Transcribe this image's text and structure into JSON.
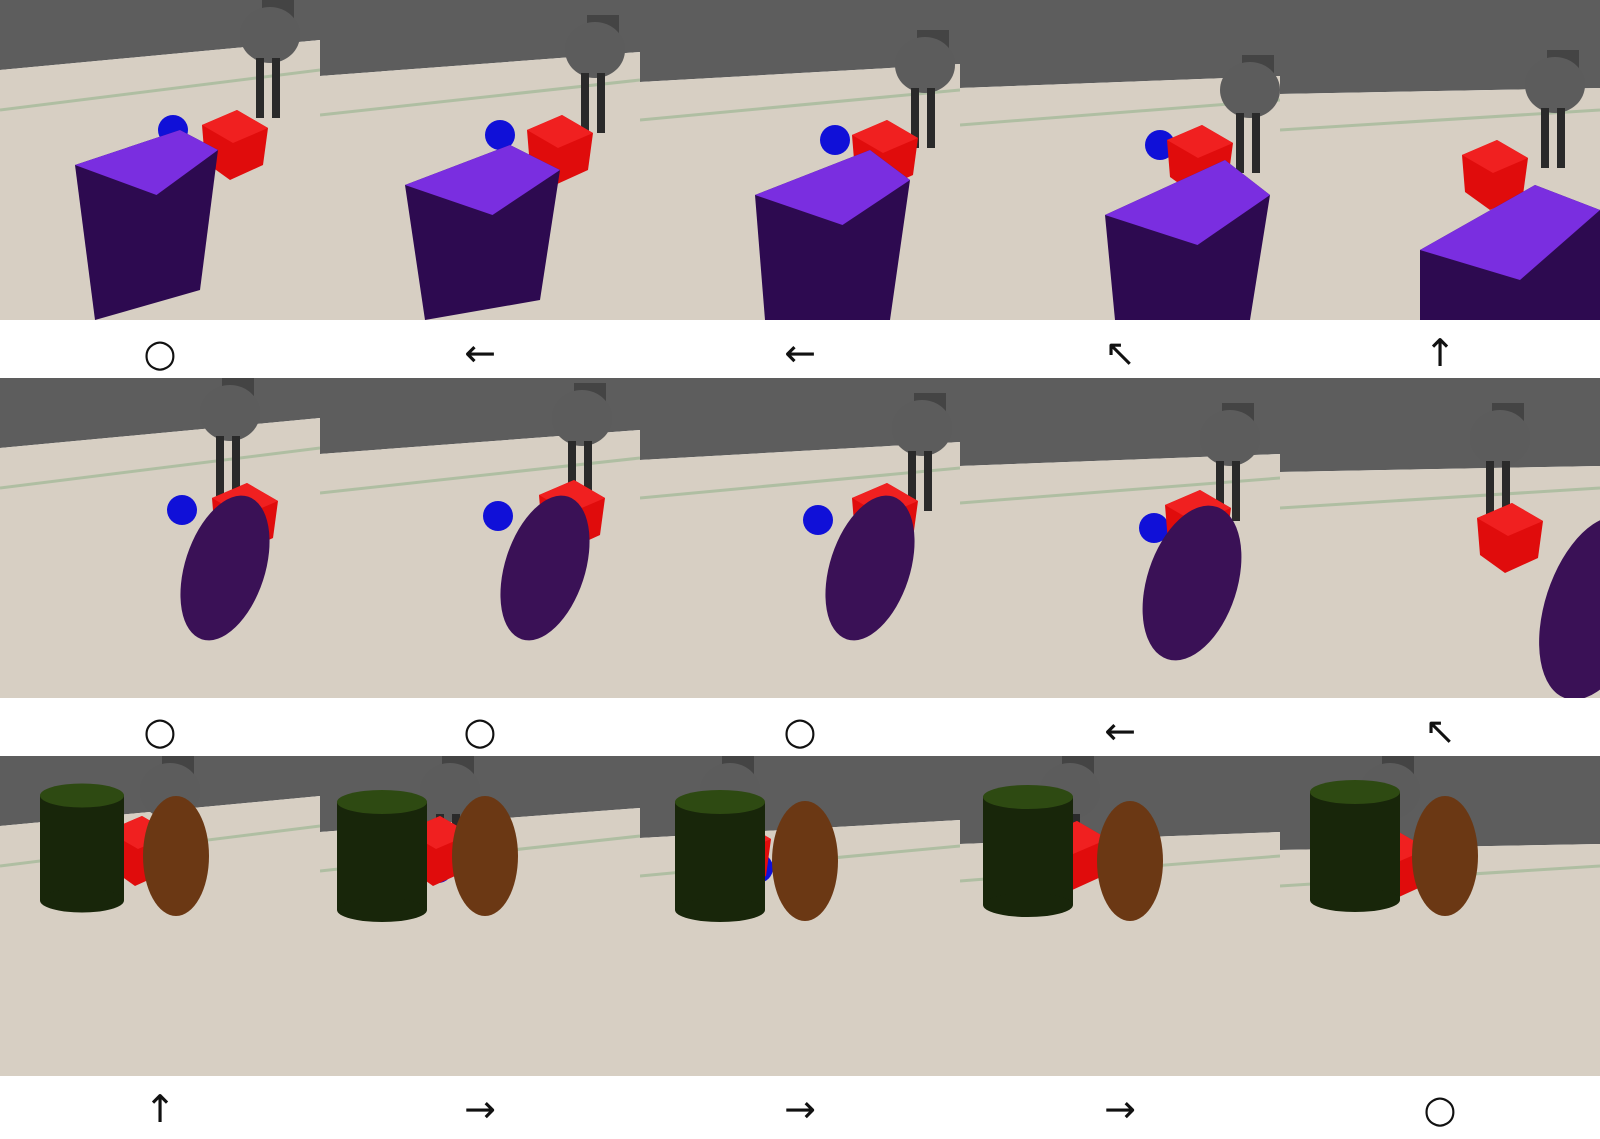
{
  "colors": {
    "floor": "#d7cfc3",
    "wall": "#5d5d5d",
    "robot": "#5c5c5c",
    "red_cube": "#e00c0c",
    "blue_sphere": "#1010d8",
    "purple": "#7a2ee0",
    "dark_purple": "#3a1156",
    "dark_green": "#18260a",
    "brown": "#6b3814"
  },
  "rows": [
    {
      "scene": "purple-box",
      "frames": [
        {
          "action": "○"
        },
        {
          "action": "←"
        },
        {
          "action": "←"
        },
        {
          "action": "↖"
        },
        {
          "action": "↑"
        }
      ]
    },
    {
      "scene": "purple-ellipsoid",
      "frames": [
        {
          "action": "○"
        },
        {
          "action": "○"
        },
        {
          "action": "○"
        },
        {
          "action": "←"
        },
        {
          "action": "↖"
        }
      ]
    },
    {
      "scene": "green-cylinder-brown-egg",
      "frames": [
        {
          "action": "↑"
        },
        {
          "action": "→"
        },
        {
          "action": "→"
        },
        {
          "action": "→"
        },
        {
          "action": "○"
        }
      ]
    }
  ]
}
